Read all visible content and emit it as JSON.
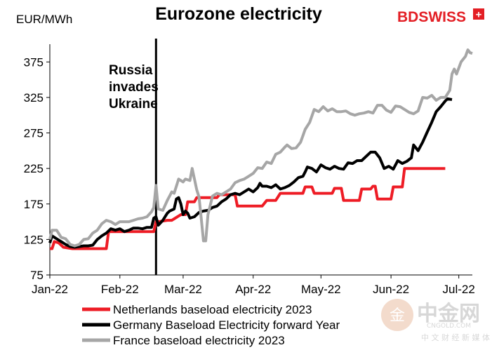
{
  "chart_data": {
    "type": "line",
    "title": "Eurozone electricity",
    "ylabel": "EUR/MWh",
    "xlabel": "",
    "ylim": [
      75,
      400
    ],
    "yticks": [
      75,
      125,
      175,
      225,
      275,
      325,
      375
    ],
    "x_tick_labels": [
      "Jan-22",
      "Feb-22",
      "Mar-22",
      "Apr-22",
      "May-22",
      "Jun-22",
      "Jul-22"
    ],
    "x_tick_positions": [
      0,
      31,
      59,
      90,
      120,
      151,
      181
    ],
    "xlim": [
      0,
      187
    ],
    "grid": false,
    "legend_position": "bottom",
    "annotation": {
      "x": 47,
      "lines": [
        "Russia",
        "invades",
        "Ukraine"
      ]
    },
    "series": [
      {
        "name": "Netherlands baseload electricity 2023",
        "color": "#ee1c25",
        "points": [
          [
            0,
            112
          ],
          [
            1,
            112
          ],
          [
            2,
            122
          ],
          [
            4,
            120
          ],
          [
            6,
            114
          ],
          [
            10,
            112
          ],
          [
            14,
            112
          ],
          [
            20,
            112
          ],
          [
            22,
            112
          ],
          [
            25,
            112
          ],
          [
            26,
            136
          ],
          [
            35,
            136
          ],
          [
            38,
            136
          ],
          [
            46,
            136
          ],
          [
            47,
            150
          ],
          [
            48,
            150
          ],
          [
            50,
            151
          ],
          [
            52,
            152
          ],
          [
            54,
            152
          ],
          [
            56,
            156
          ],
          [
            58,
            160
          ],
          [
            60,
            160
          ],
          [
            61,
            178
          ],
          [
            64,
            178
          ],
          [
            65,
            184
          ],
          [
            70,
            184
          ],
          [
            74,
            184
          ],
          [
            75,
            188
          ],
          [
            78,
            188
          ],
          [
            82,
            188
          ],
          [
            83,
            172
          ],
          [
            94,
            172
          ],
          [
            96,
            180
          ],
          [
            100,
            180
          ],
          [
            102,
            190
          ],
          [
            112,
            190
          ],
          [
            113,
            199
          ],
          [
            116,
            199
          ],
          [
            117,
            190
          ],
          [
            122,
            190
          ],
          [
            125,
            190
          ],
          [
            126,
            197
          ],
          [
            129,
            197
          ],
          [
            130,
            180
          ],
          [
            137,
            180
          ],
          [
            138,
            196
          ],
          [
            142,
            196
          ],
          [
            143,
            200
          ],
          [
            144,
            200
          ],
          [
            145,
            182
          ],
          [
            151,
            182
          ],
          [
            152,
            199
          ],
          [
            156,
            199
          ],
          [
            157,
            225
          ],
          [
            175,
            225
          ]
        ]
      },
      {
        "name": "Germany Baseload Electricity forward Year",
        "color": "#000000",
        "points": [
          [
            0,
            120
          ],
          [
            1,
            130
          ],
          [
            3,
            126
          ],
          [
            5,
            122
          ],
          [
            7,
            118
          ],
          [
            9,
            115
          ],
          [
            11,
            114
          ],
          [
            13,
            115
          ],
          [
            15,
            116
          ],
          [
            17,
            116
          ],
          [
            19,
            117
          ],
          [
            21,
            125
          ],
          [
            23,
            130
          ],
          [
            25,
            134
          ],
          [
            27,
            140
          ],
          [
            29,
            138
          ],
          [
            31,
            140
          ],
          [
            33,
            136
          ],
          [
            35,
            138
          ],
          [
            37,
            141
          ],
          [
            39,
            141
          ],
          [
            41,
            140
          ],
          [
            43,
            142
          ],
          [
            45,
            142
          ],
          [
            46,
            155
          ],
          [
            47,
            157
          ],
          [
            48,
            145
          ],
          [
            50,
            152
          ],
          [
            52,
            162
          ],
          [
            53,
            165
          ],
          [
            55,
            168
          ],
          [
            56,
            182
          ],
          [
            57,
            184
          ],
          [
            58,
            175
          ],
          [
            59,
            160
          ],
          [
            60,
            165
          ],
          [
            61,
            162
          ],
          [
            62,
            155
          ],
          [
            64,
            157
          ],
          [
            66,
            163
          ],
          [
            68,
            165
          ],
          [
            70,
            166
          ],
          [
            72,
            170
          ],
          [
            74,
            172
          ],
          [
            76,
            178
          ],
          [
            78,
            182
          ],
          [
            80,
            188
          ],
          [
            82,
            190
          ],
          [
            84,
            188
          ],
          [
            86,
            192
          ],
          [
            88,
            196
          ],
          [
            90,
            192
          ],
          [
            92,
            198
          ],
          [
            93,
            204
          ],
          [
            94,
            200
          ],
          [
            96,
            200
          ],
          [
            98,
            198
          ],
          [
            100,
            202
          ],
          [
            102,
            196
          ],
          [
            104,
            198
          ],
          [
            106,
            201
          ],
          [
            108,
            206
          ],
          [
            110,
            212
          ],
          [
            112,
            214
          ],
          [
            113,
            220
          ],
          [
            114,
            227
          ],
          [
            116,
            225
          ],
          [
            118,
            220
          ],
          [
            120,
            230
          ],
          [
            122,
            226
          ],
          [
            124,
            224
          ],
          [
            126,
            228
          ],
          [
            128,
            225
          ],
          [
            130,
            224
          ],
          [
            132,
            233
          ],
          [
            134,
            232
          ],
          [
            136,
            236
          ],
          [
            138,
            236
          ],
          [
            140,
            242
          ],
          [
            142,
            248
          ],
          [
            144,
            248
          ],
          [
            146,
            240
          ],
          [
            148,
            225
          ],
          [
            150,
            228
          ],
          [
            152,
            224
          ],
          [
            154,
            236
          ],
          [
            156,
            232
          ],
          [
            158,
            235
          ],
          [
            160,
            240
          ],
          [
            161,
            258
          ],
          [
            163,
            250
          ],
          [
            165,
            262
          ],
          [
            167,
            276
          ],
          [
            169,
            290
          ],
          [
            171,
            305
          ],
          [
            173,
            312
          ],
          [
            175,
            320
          ],
          [
            176,
            323
          ],
          [
            178,
            322
          ]
        ]
      },
      {
        "name": "France baseload electricity 2023",
        "color": "#a6a6a6",
        "points": [
          [
            0,
            125
          ],
          [
            1,
            138
          ],
          [
            3,
            138
          ],
          [
            5,
            128
          ],
          [
            7,
            126
          ],
          [
            9,
            118
          ],
          [
            11,
            116
          ],
          [
            13,
            118
          ],
          [
            15,
            125
          ],
          [
            17,
            126
          ],
          [
            19,
            134
          ],
          [
            21,
            138
          ],
          [
            23,
            147
          ],
          [
            25,
            152
          ],
          [
            27,
            150
          ],
          [
            29,
            146
          ],
          [
            31,
            150
          ],
          [
            33,
            150
          ],
          [
            35,
            150
          ],
          [
            37,
            152
          ],
          [
            39,
            154
          ],
          [
            41,
            155
          ],
          [
            43,
            157
          ],
          [
            45,
            164
          ],
          [
            46,
            170
          ],
          [
            47,
            201
          ],
          [
            48,
            168
          ],
          [
            50,
            166
          ],
          [
            52,
            180
          ],
          [
            54,
            192
          ],
          [
            55,
            190
          ],
          [
            57,
            210
          ],
          [
            59,
            206
          ],
          [
            60,
            210
          ],
          [
            62,
            208
          ],
          [
            63,
            225
          ],
          [
            65,
            195
          ],
          [
            66,
            185
          ],
          [
            67,
            155
          ],
          [
            68,
            123
          ],
          [
            69,
            123
          ],
          [
            70,
            160
          ],
          [
            72,
            186
          ],
          [
            74,
            190
          ],
          [
            76,
            188
          ],
          [
            78,
            192
          ],
          [
            80,
            196
          ],
          [
            82,
            205
          ],
          [
            84,
            208
          ],
          [
            86,
            210
          ],
          [
            88,
            214
          ],
          [
            90,
            218
          ],
          [
            92,
            226
          ],
          [
            94,
            225
          ],
          [
            96,
            234
          ],
          [
            98,
            232
          ],
          [
            100,
            245
          ],
          [
            102,
            248
          ],
          [
            104,
            255
          ],
          [
            105,
            258
          ],
          [
            107,
            253
          ],
          [
            109,
            254
          ],
          [
            111,
            262
          ],
          [
            113,
            280
          ],
          [
            115,
            290
          ],
          [
            117,
            308
          ],
          [
            119,
            305
          ],
          [
            121,
            312
          ],
          [
            123,
            306
          ],
          [
            125,
            309
          ],
          [
            127,
            305
          ],
          [
            129,
            305
          ],
          [
            131,
            306
          ],
          [
            133,
            302
          ],
          [
            135,
            300
          ],
          [
            137,
            302
          ],
          [
            139,
            303
          ],
          [
            141,
            305
          ],
          [
            143,
            303
          ],
          [
            145,
            314
          ],
          [
            147,
            314
          ],
          [
            149,
            307
          ],
          [
            151,
            304
          ],
          [
            153,
            313
          ],
          [
            155,
            312
          ],
          [
            157,
            308
          ],
          [
            159,
            304
          ],
          [
            161,
            302
          ],
          [
            163,
            306
          ],
          [
            165,
            325
          ],
          [
            167,
            324
          ],
          [
            169,
            328
          ],
          [
            171,
            321
          ],
          [
            173,
            325
          ],
          [
            175,
            325
          ],
          [
            177,
            335
          ],
          [
            178,
            358
          ],
          [
            179,
            365
          ],
          [
            180,
            358
          ],
          [
            182,
            375
          ],
          [
            184,
            383
          ],
          [
            185,
            392
          ],
          [
            186,
            388
          ],
          [
            187,
            387
          ]
        ]
      }
    ]
  },
  "brand": {
    "name": "BDSWISS",
    "mark": "+"
  },
  "watermark": {
    "glyph": "金",
    "cn_name": "中金网",
    "domain": "CNGOLD.COM",
    "tagline": "中 文 财 经 新 媒 体"
  }
}
